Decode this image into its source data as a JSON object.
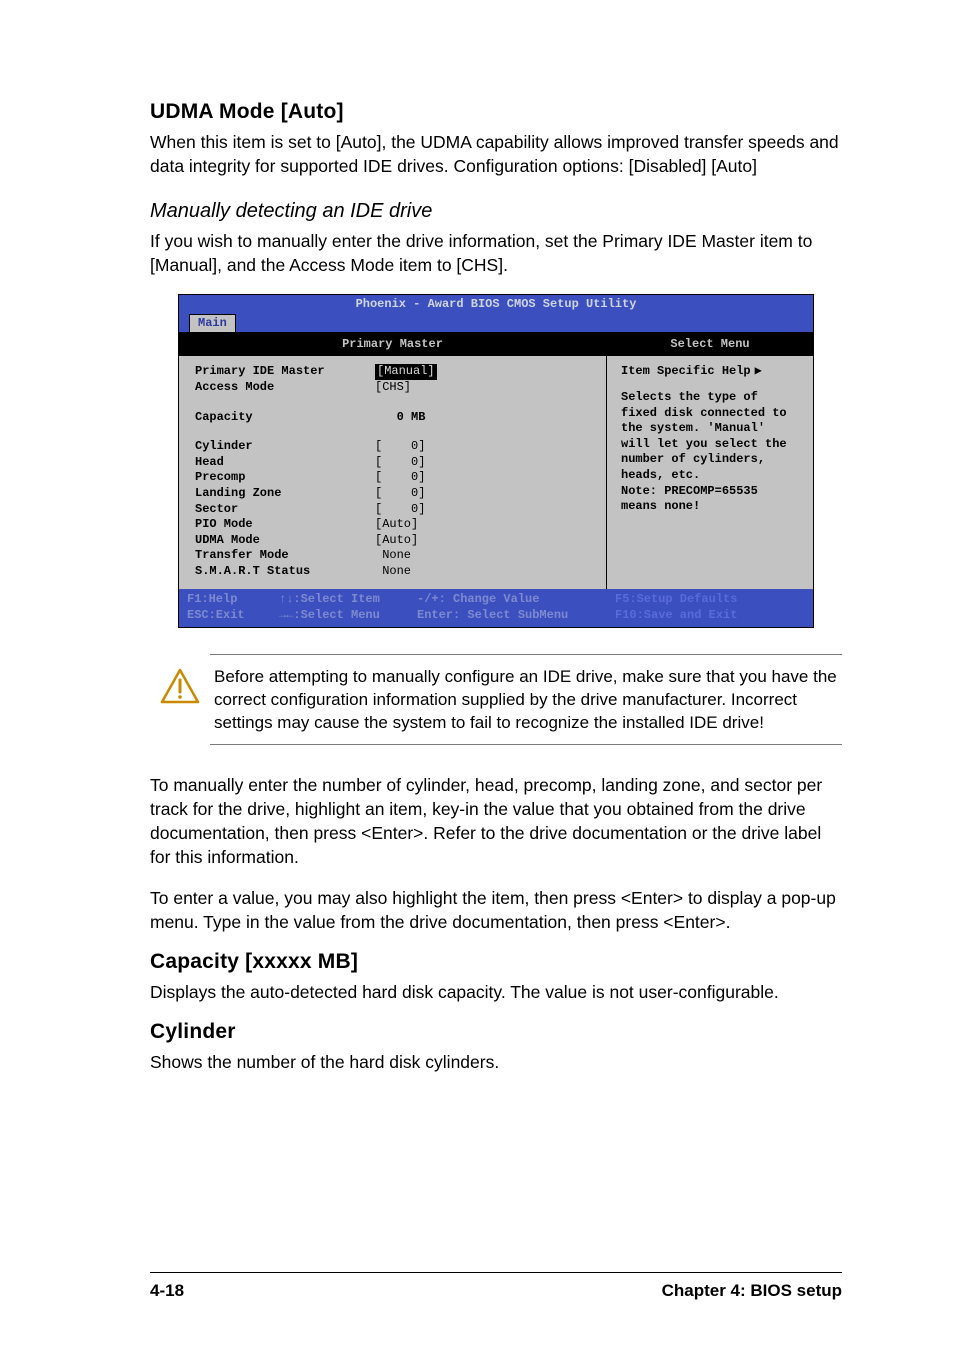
{
  "section_udma": {
    "heading": "UDMA Mode [Auto]",
    "body": "When this item is set to [Auto], the UDMA capability allows improved transfer speeds and data integrity for supported IDE drives. Configuration options: [Disabled] [Auto]"
  },
  "section_manual": {
    "heading": "Manually detecting an IDE drive",
    "body": "If you wish to manually enter the drive information, set the Primary IDE Master item to [Manual], and the Access Mode item to [CHS]."
  },
  "bios": {
    "colors": {
      "frame_bg": "#c3c3c3",
      "bar_bg": "#3b4fbf",
      "bar_text_dim": "#7e8ad0",
      "bar_text": "#cfd5e0",
      "header_bg": "#000000",
      "header_text": "#c3c3c3",
      "highlight_bg": "#000000",
      "highlight_text": "#d8d8d8"
    },
    "title": "Phoenix - Award BIOS CMOS Setup Utility",
    "tab": "Main",
    "left_header": "Primary Master",
    "right_header": "Select Menu",
    "left_rows_top": [
      {
        "label": "Primary IDE Master",
        "value": "[Manual]",
        "highlight": true
      },
      {
        "label": "Access Mode",
        "value": "[CHS]"
      }
    ],
    "capacity": {
      "label": "Capacity",
      "value": "   0 MB"
    },
    "left_rows": [
      {
        "label": "Cylinder",
        "value": "[    0]"
      },
      {
        "label": "Head",
        "value": "[    0]"
      },
      {
        "label": "Precomp",
        "value": "[    0]"
      },
      {
        "label": "Landing Zone",
        "value": "[    0]"
      },
      {
        "label": "Sector",
        "value": "[    0]"
      },
      {
        "label": "PIO Mode",
        "value": "[Auto]"
      },
      {
        "label": "UDMA Mode",
        "value": "[Auto]"
      },
      {
        "label": "Transfer Mode",
        "value": " None"
      },
      {
        "label": "S.M.A.R.T Status",
        "value": " None"
      }
    ],
    "help_title": "Item Specific Help",
    "help_lines": [
      "Selects the type of",
      "fixed disk connected to",
      "the system. 'Manual'",
      "will let you select the",
      "number of cylinders,",
      "heads, etc.",
      "Note: PRECOMP=65535",
      "means none!"
    ],
    "footer": {
      "r1c1": "F1:Help",
      "r1c2": "↑↓:Select Item",
      "r1c3": "-/+: Change Value",
      "r1c4": "F5:Setup Defaults",
      "r2c1": "ESC:Exit",
      "r2c2": "→←:Select Menu",
      "r2c3": "Enter: Select SubMenu",
      "r2c4": "F10:Save and Exit"
    }
  },
  "note": "Before attempting to manually configure an IDE drive, make sure that you have the correct configuration information supplied by the drive manufacturer. Incorrect settings may cause the system to fail to recognize the installed IDE drive!",
  "para_after_note_1": "To manually enter the number of cylinder, head, precomp, landing zone, and sector per track for the drive, highlight an item, key-in the value that you obtained from the drive documentation, then press <Enter>. Refer to the drive documentation or the drive label for this information.",
  "para_after_note_2": "To enter a value, you may also highlight the item, then press <Enter> to display a pop-up menu. Type in the value from the drive documentation, then press <Enter>.",
  "section_capacity": {
    "heading": "Capacity [xxxxx MB]",
    "body": "Displays the auto-detected hard disk capacity. The value is not user-configurable."
  },
  "section_cylinder": {
    "heading": "Cylinder",
    "body": "Shows the number of the hard disk cylinders."
  },
  "footer": {
    "left": "4-18",
    "right": "Chapter 4: BIOS setup"
  }
}
